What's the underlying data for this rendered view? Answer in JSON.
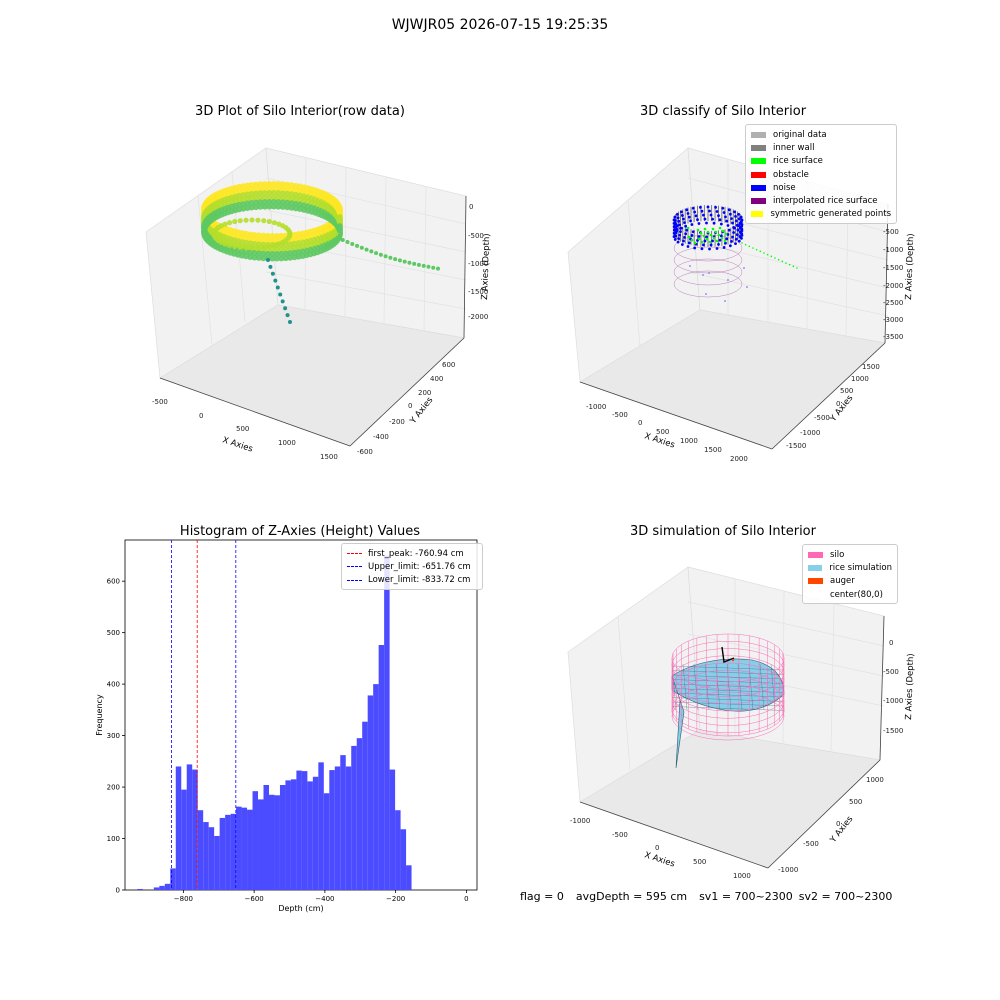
{
  "suptitle": "WJWJR05 2026-07-15 19:25:35",
  "footer": {
    "flag": "flag = 0",
    "avg_depth": "avgDepth = 595 cm",
    "sv1": "sv1 = 700~2300",
    "sv2": "sv2 = 700~2300"
  },
  "chart_data": [
    {
      "type": "scatter",
      "title": "3D Plot of Silo Interior(row data)",
      "xlabel": "X Axies",
      "ylabel": "Y Axies",
      "zlabel": "Z Axies (Depth)",
      "x_ticks": [
        "-500",
        "0",
        "500",
        "1000",
        "1500"
      ],
      "y_ticks": [
        "-600",
        "-400",
        "-200",
        "0",
        "200",
        "400",
        "600"
      ],
      "z_ticks": [
        "0",
        "-500",
        "-1000",
        "-1500",
        "-2000"
      ],
      "colormap": [
        "#3b528b",
        "#21918c",
        "#5ec962",
        "#b5de2b",
        "#fde725"
      ]
    },
    {
      "type": "scatter",
      "title": "3D classify of Silo Interior",
      "xlabel": "X Axies",
      "ylabel": "Y Axies",
      "zlabel": "Z Axies (Depth)",
      "x_ticks": [
        "-1000",
        "-500",
        "0",
        "500",
        "1000",
        "1500",
        "2000"
      ],
      "y_ticks": [
        "-1500",
        "-1000",
        "-500",
        "0",
        "500",
        "1000",
        "1500"
      ],
      "z_ticks": [
        "0",
        "-500",
        "-1000",
        "-1500",
        "-2000",
        "-2500",
        "-3000",
        "-3500"
      ],
      "legend": [
        {
          "label": "original data",
          "color": "#b0b0b0"
        },
        {
          "label": "inner wall",
          "color": "#808080"
        },
        {
          "label": "rice surface",
          "color": "#00ff00"
        },
        {
          "label": "obstacle",
          "color": "#ff0000"
        },
        {
          "label": "noise",
          "color": "#0000ff"
        },
        {
          "label": "interpolated rice surface",
          "color": "#800080"
        },
        {
          "label": "symmetric generated points",
          "color": "#ffff00"
        }
      ]
    },
    {
      "type": "bar",
      "title": "Histogram of Z-Axies (Height) Values",
      "xlabel": "Depth (cm)",
      "ylabel": "Frequency",
      "xlim": [
        -965,
        30
      ],
      "ylim": [
        0,
        680
      ],
      "x_ticks": [
        -800,
        -600,
        -400,
        -200,
        0
      ],
      "y_ticks": [
        0,
        100,
        200,
        300,
        400,
        500,
        600
      ],
      "bar_color": "#4b4bff",
      "bin_start": -930,
      "bin_width": 15.5,
      "values": [
        2,
        0,
        0,
        5,
        8,
        12,
        42,
        240,
        195,
        244,
        234,
        155,
        132,
        122,
        105,
        140,
        146,
        148,
        162,
        160,
        156,
        192,
        176,
        204,
        185,
        184,
        204,
        213,
        215,
        232,
        231,
        211,
        220,
        248,
        188,
        233,
        240,
        262,
        240,
        280,
        295,
        327,
        378,
        400,
        476,
        650,
        234,
        155,
        118,
        48
      ],
      "vlines": [
        {
          "label": "first_peak: -760.94 cm",
          "x": -760.94,
          "color": "#ff0000"
        },
        {
          "label": "Upper_limit: -651.76 cm",
          "x": -651.76,
          "color": "#0000ff"
        },
        {
          "label": "Lower_limit: -833.72 cm",
          "x": -833.72,
          "color": "#0000ff"
        }
      ]
    },
    {
      "type": "area",
      "title": "3D simulation of Silo Interior",
      "xlabel": "X Axies",
      "ylabel": "Y Axies",
      "zlabel": "Z Axies (Depth)",
      "x_ticks": [
        "-1000",
        "-500",
        "0",
        "500",
        "1000"
      ],
      "y_ticks": [
        "-1000",
        "-500",
        "0",
        "500",
        "1000"
      ],
      "z_ticks": [
        "0",
        "-500",
        "-1000",
        "-1500"
      ],
      "legend": [
        {
          "label": "silo",
          "color": "#ff69b4"
        },
        {
          "label": "rice simulation",
          "color": "#87ceeb"
        },
        {
          "label": "auger",
          "color": "#ff4500"
        },
        {
          "label": "center(80,0)",
          "color": ""
        }
      ]
    }
  ]
}
